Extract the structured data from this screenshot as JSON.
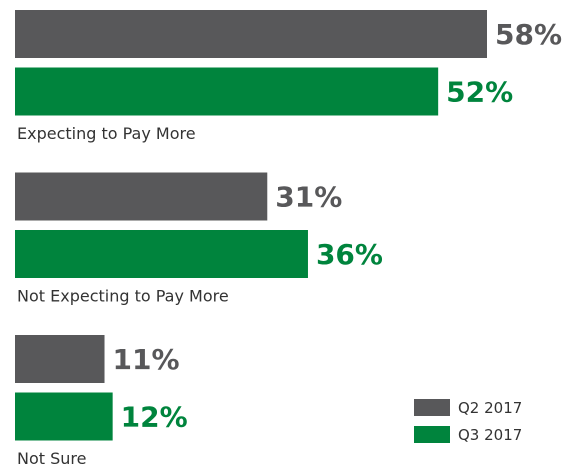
{
  "chart_data": {
    "type": "hbar",
    "categories": [
      "Expecting to Pay More",
      "Not Expecting to Pay More",
      "Not Sure"
    ],
    "series": [
      {
        "name": "Q2 2017",
        "color": "#58585a",
        "values": [
          58,
          31,
          11
        ],
        "value_labels": [
          "58%",
          "31%",
          "11%"
        ]
      },
      {
        "name": "Q3 2017",
        "color": "#00843d",
        "values": [
          52,
          36,
          12
        ],
        "value_labels": [
          "52%",
          "36%",
          "12%"
        ]
      }
    ],
    "legend": "lower right"
  }
}
